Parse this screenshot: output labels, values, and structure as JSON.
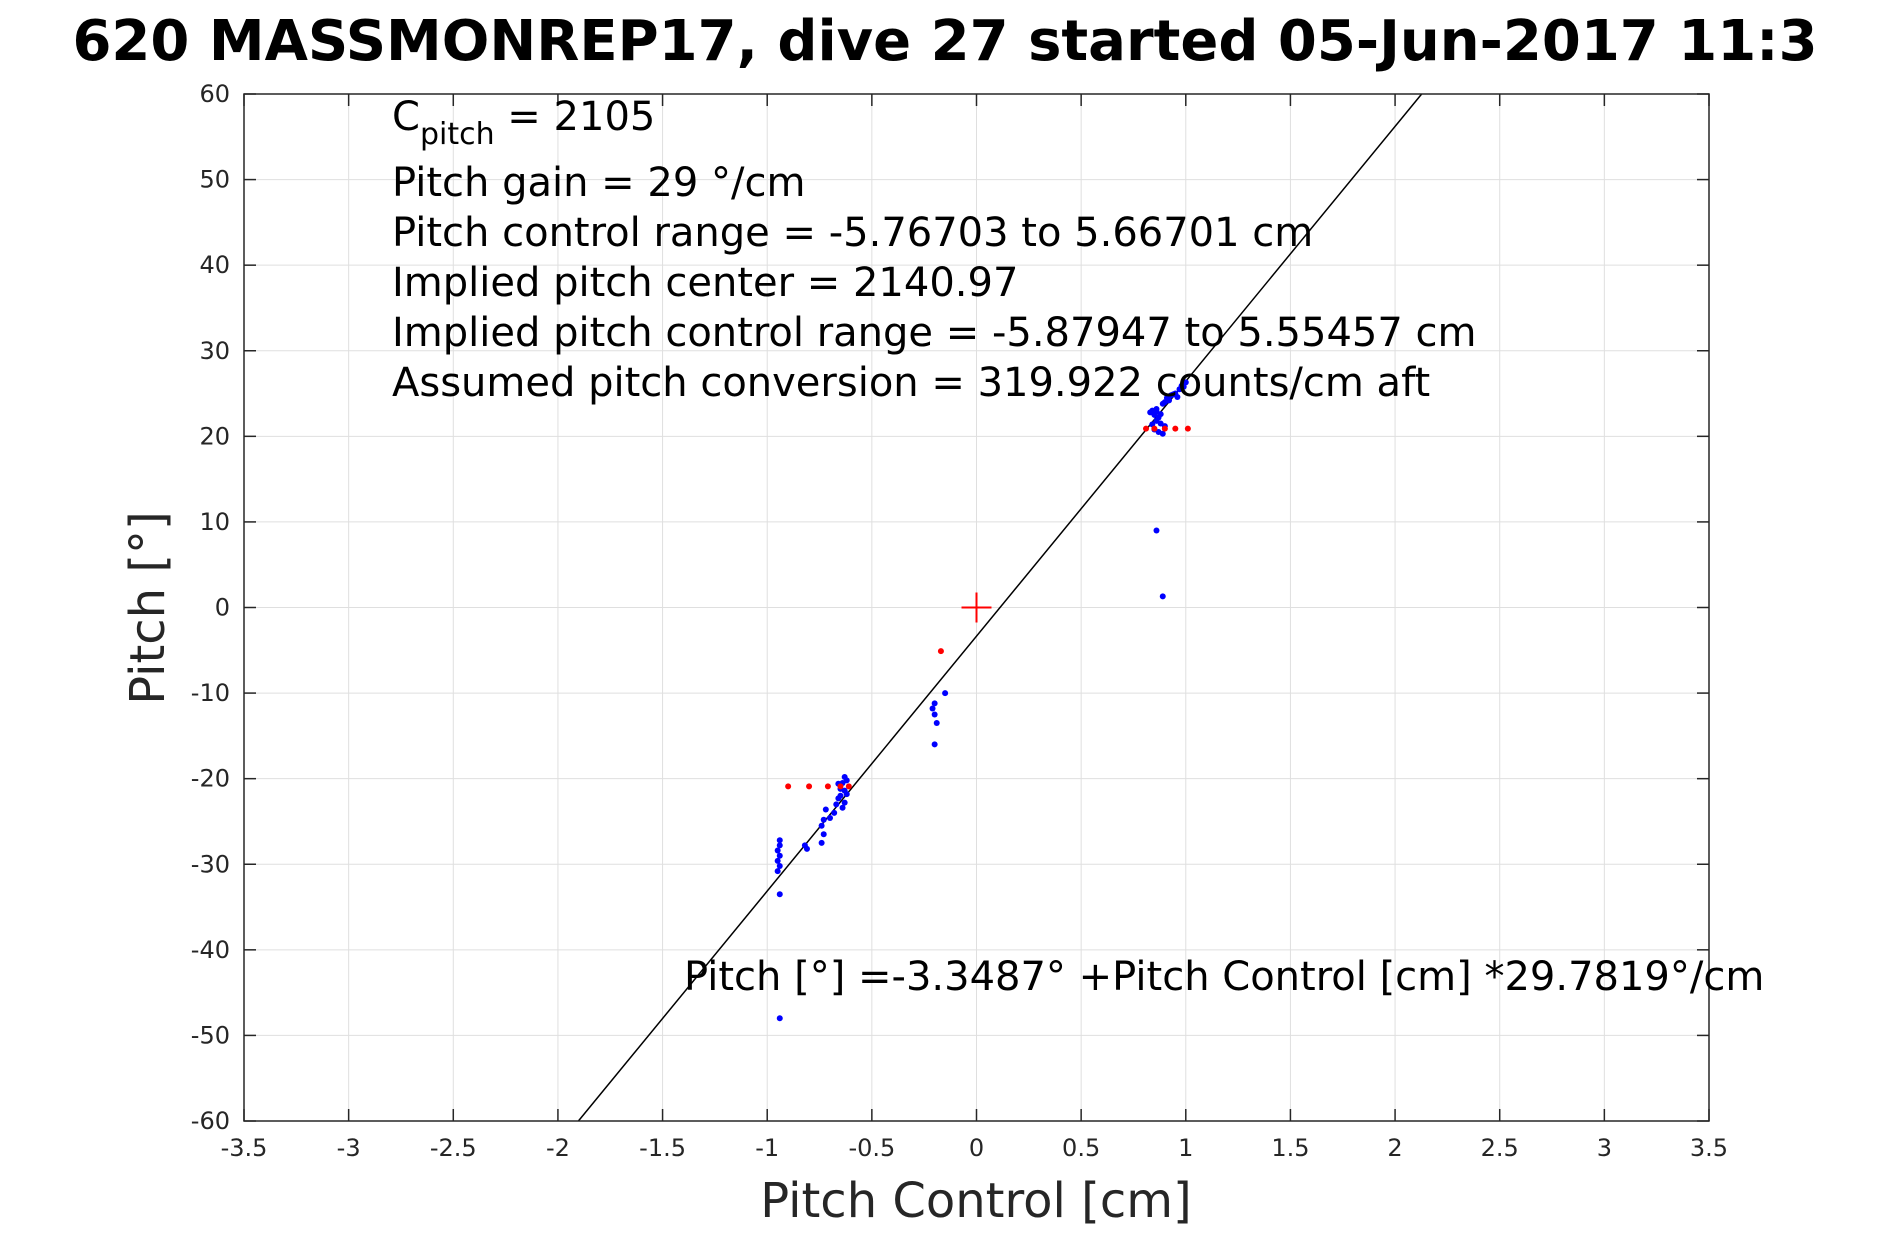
{
  "chart_data": {
    "type": "scatter",
    "title": "620 MASSMONREP17, dive 27 started 05-Jun-2017 11:3",
    "xlabel": "Pitch Control [cm]",
    "ylabel": "Pitch [°]",
    "xlim": [
      -3.5,
      3.5
    ],
    "ylim": [
      -60,
      60
    ],
    "x_ticks": [
      "-3.5",
      "-3",
      "-2.5",
      "-2",
      "-1.5",
      "-1",
      "-0.5",
      "0",
      "0.5",
      "1",
      "1.5",
      "2",
      "2.5",
      "3",
      "3.5"
    ],
    "x_tick_values": [
      -3.5,
      -3,
      -2.5,
      -2,
      -1.5,
      -1,
      -0.5,
      0,
      0.5,
      1,
      1.5,
      2,
      2.5,
      3,
      3.5
    ],
    "y_ticks": [
      "-60",
      "-50",
      "-40",
      "-30",
      "-20",
      "-10",
      "0",
      "10",
      "20",
      "30",
      "40",
      "50",
      "60"
    ],
    "y_tick_values": [
      -60,
      -50,
      -40,
      -30,
      -20,
      -10,
      0,
      10,
      20,
      30,
      40,
      50,
      60
    ],
    "grid": true,
    "colors": {
      "observed": "#0000ff",
      "reference": "#ff0000",
      "fit": "#000000",
      "center": "#ff0000",
      "grid": "#dfdfdf",
      "axes": "#262626"
    },
    "annotations": {
      "c_pitch": {
        "prefix": "C",
        "subscript": "pitch",
        "suffix": " = 2105"
      },
      "lines": [
        "Pitch gain = 29 °/cm",
        "Pitch control range = -5.76703 to 5.66701 cm",
        "Implied pitch center = 2140.97",
        "Implied pitch control range = -5.87947 to 5.55457 cm",
        "Assumed pitch conversion = 319.922 counts/cm aft"
      ],
      "fit_equation": "Pitch [°] =-3.3487° +Pitch Control [cm] *29.7819°/cm"
    },
    "fit_line": {
      "intercept": -3.3487,
      "slope": 29.7819
    },
    "center_marker": {
      "x": 0,
      "y": 0
    },
    "series": [
      {
        "color": "#0000ff",
        "points": [
          [
            0.85,
            22.5
          ],
          [
            0.86,
            21.8
          ],
          [
            0.84,
            23.0
          ],
          [
            0.87,
            22.2
          ],
          [
            0.88,
            21.5
          ],
          [
            0.83,
            22.8
          ],
          [
            0.86,
            23.2
          ],
          [
            0.85,
            20.8
          ],
          [
            0.87,
            20.5
          ],
          [
            0.89,
            20.3
          ],
          [
            0.9,
            21.2
          ],
          [
            0.88,
            22.6
          ],
          [
            0.84,
            21.4
          ],
          [
            0.86,
            22.9
          ],
          [
            0.89,
            23.8
          ],
          [
            0.9,
            24.0
          ],
          [
            0.91,
            24.5
          ],
          [
            0.92,
            24.2
          ],
          [
            0.93,
            24.8
          ],
          [
            0.95,
            25.0
          ],
          [
            0.97,
            25.5
          ],
          [
            0.99,
            25.8
          ],
          [
            1.0,
            26.3
          ],
          [
            0.98,
            25.9
          ],
          [
            0.96,
            24.6
          ],
          [
            0.94,
            24.9
          ],
          [
            0.86,
            9.0
          ],
          [
            0.89,
            1.3
          ],
          [
            -0.2,
            -11.2
          ],
          [
            -0.21,
            -11.8
          ],
          [
            -0.2,
            -12.5
          ],
          [
            -0.19,
            -13.5
          ],
          [
            -0.2,
            -16.0
          ],
          [
            -0.15,
            -10.0
          ],
          [
            -0.63,
            -19.8
          ],
          [
            -0.64,
            -20.5
          ],
          [
            -0.65,
            -21.2
          ],
          [
            -0.62,
            -21.8
          ],
          [
            -0.66,
            -22.3
          ],
          [
            -0.63,
            -22.8
          ],
          [
            -0.64,
            -23.4
          ],
          [
            -0.67,
            -23.0
          ],
          [
            -0.62,
            -20.2
          ],
          [
            -0.65,
            -22.0
          ],
          [
            -0.63,
            -21.4
          ],
          [
            -0.66,
            -20.6
          ],
          [
            -0.68,
            -24.0
          ],
          [
            -0.7,
            -24.6
          ],
          [
            -0.72,
            -23.6
          ],
          [
            -0.73,
            -24.8
          ],
          [
            -0.74,
            -25.5
          ],
          [
            -0.73,
            -26.5
          ],
          [
            -0.74,
            -27.5
          ],
          [
            -0.82,
            -27.8
          ],
          [
            -0.81,
            -28.2
          ],
          [
            -0.94,
            -27.2
          ],
          [
            -0.94,
            -27.8
          ],
          [
            -0.95,
            -28.4
          ],
          [
            -0.94,
            -29.0
          ],
          [
            -0.95,
            -29.6
          ],
          [
            -0.94,
            -30.2
          ],
          [
            -0.95,
            -30.8
          ],
          [
            -0.94,
            -33.5
          ],
          [
            -0.94,
            -48.0
          ]
        ]
      },
      {
        "color": "#ff0000",
        "points": [
          [
            0.81,
            20.9
          ],
          [
            0.85,
            20.9
          ],
          [
            0.9,
            20.9
          ],
          [
            0.95,
            20.9
          ],
          [
            1.01,
            20.9
          ],
          [
            -0.17,
            -5.1
          ],
          [
            -0.9,
            -20.9
          ],
          [
            -0.8,
            -20.9
          ],
          [
            -0.71,
            -20.9
          ],
          [
            -0.65,
            -20.9
          ],
          [
            -0.61,
            -20.9
          ]
        ]
      }
    ]
  }
}
